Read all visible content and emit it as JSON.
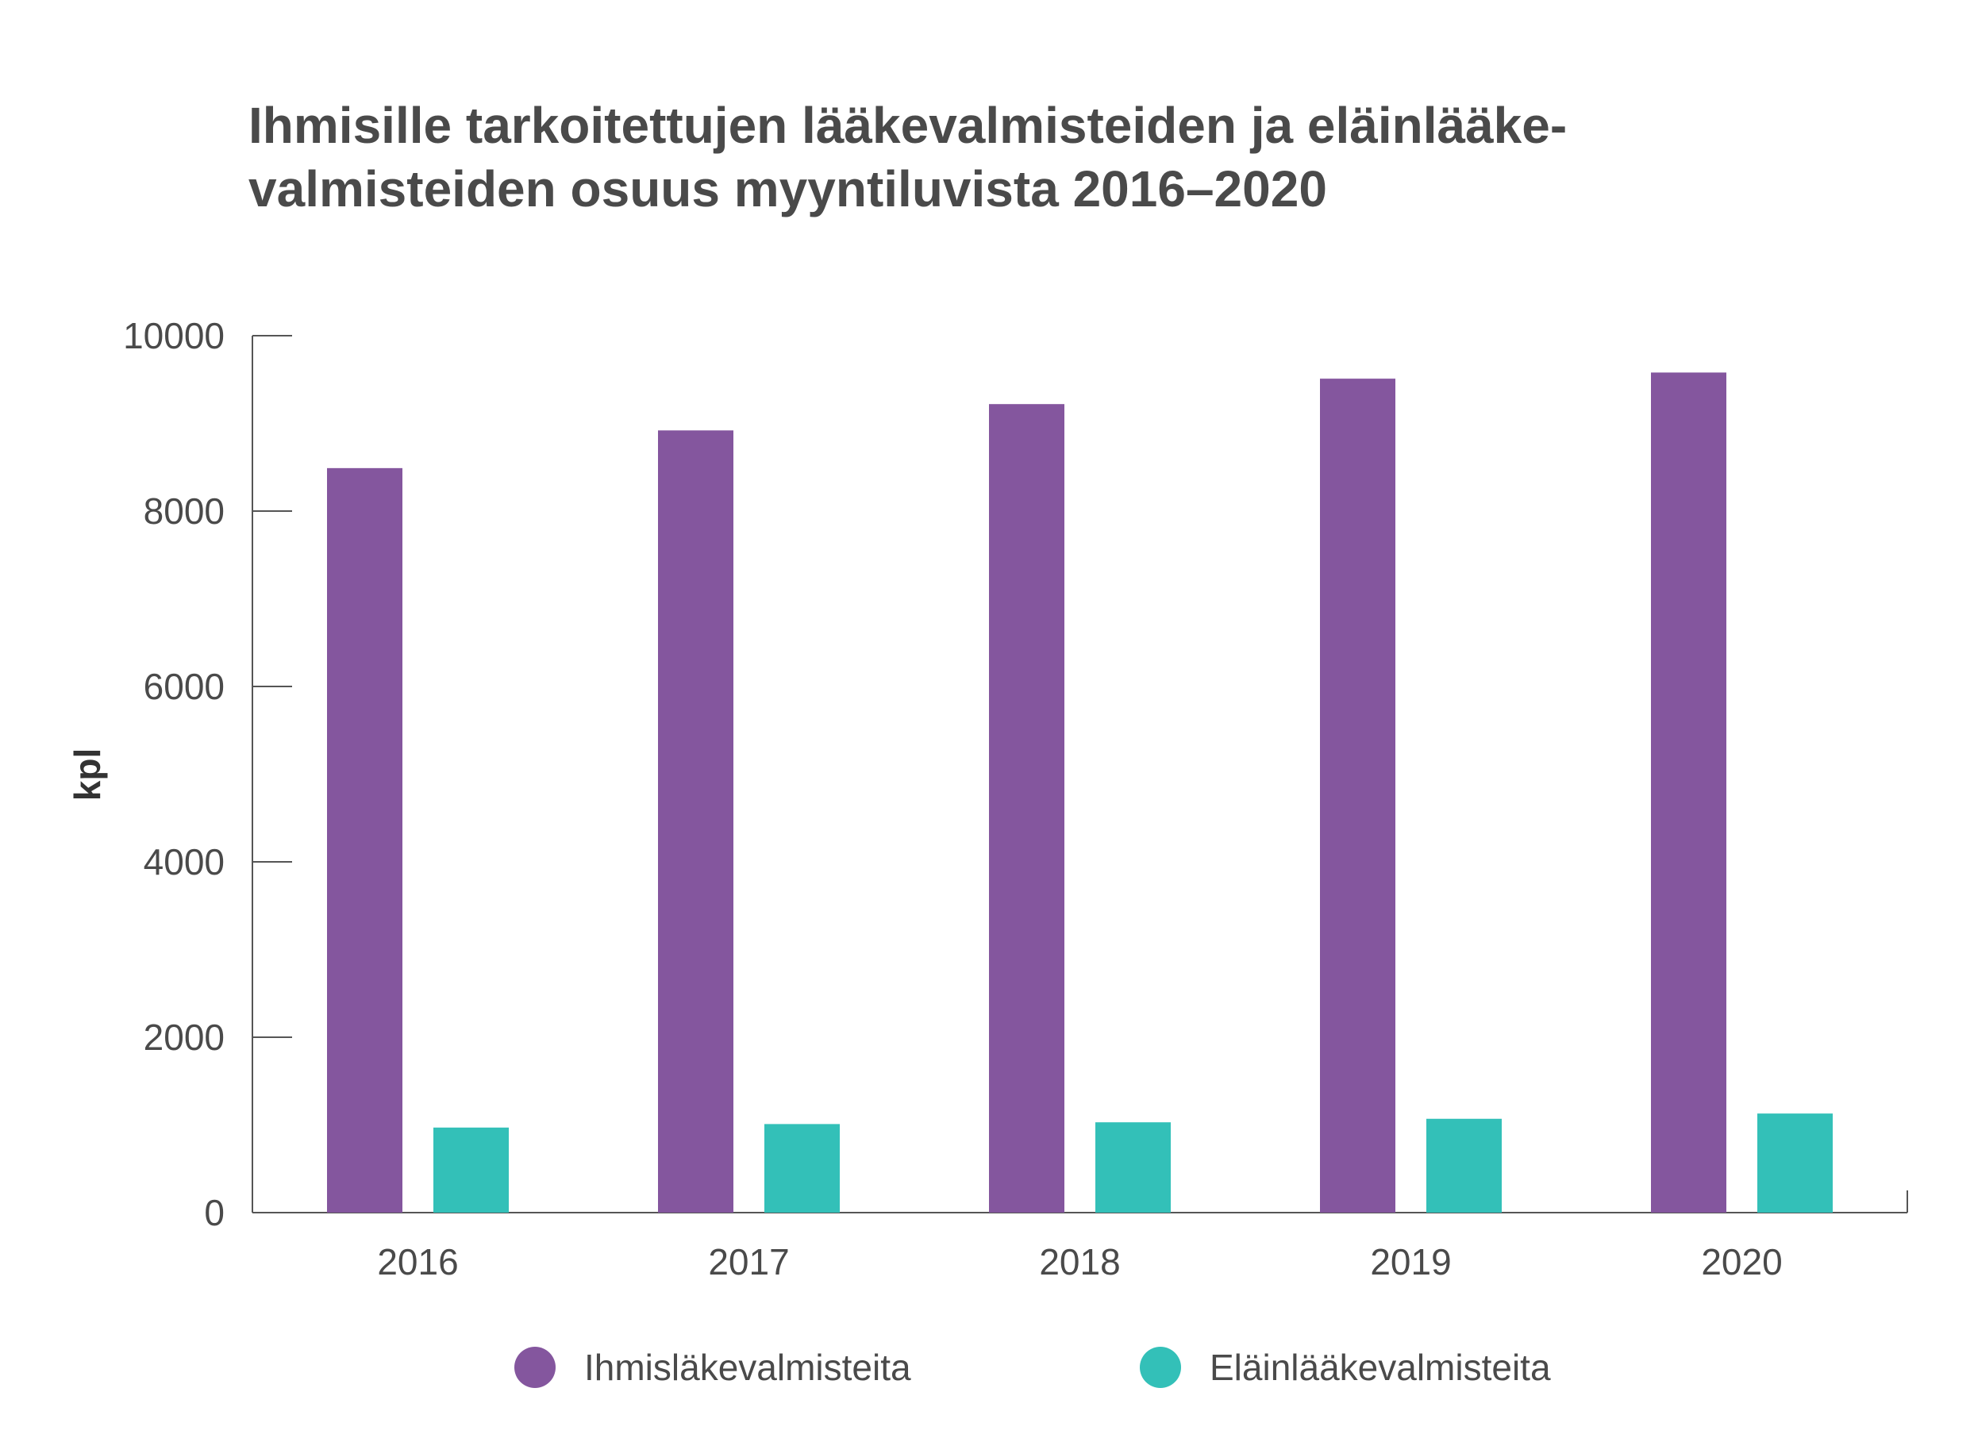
{
  "title_lines": [
    "Ihmisille tarkoitettujen lääkevalmisteiden ja eläinlääke-",
    "valmisteiden osuus myyntiluvista 2016–2020"
  ],
  "chart_data": {
    "type": "bar",
    "title": "Ihmisille tarkoitettujen lääkevalmisteiden ja eläinlääkevalmisteiden osuus myyntiluvista 2016–2020",
    "xlabel": "",
    "ylabel": "kpl",
    "categories": [
      "2016",
      "2017",
      "2018",
      "2019",
      "2020"
    ],
    "ylim": [
      0,
      10000
    ],
    "yticks": [
      "0",
      "2000",
      "4000",
      "6000",
      "8000",
      "10000"
    ],
    "grid": false,
    "legend_position": "bottom",
    "series": [
      {
        "name": "Ihmisläkevalmisteita",
        "color": "#84569e",
        "values": [
          8490,
          8920,
          9220,
          9510,
          9580
        ]
      },
      {
        "name": "Eläinlääkevalmisteita",
        "color": "#33c0b8",
        "values": [
          970,
          1010,
          1030,
          1070,
          1130
        ]
      }
    ]
  },
  "legend": {
    "items": [
      {
        "label": "Ihmisläkevalmisteita",
        "color": "#84569e"
      },
      {
        "label": "Eläinlääkevalmisteita",
        "color": "#33c0b8"
      }
    ]
  }
}
